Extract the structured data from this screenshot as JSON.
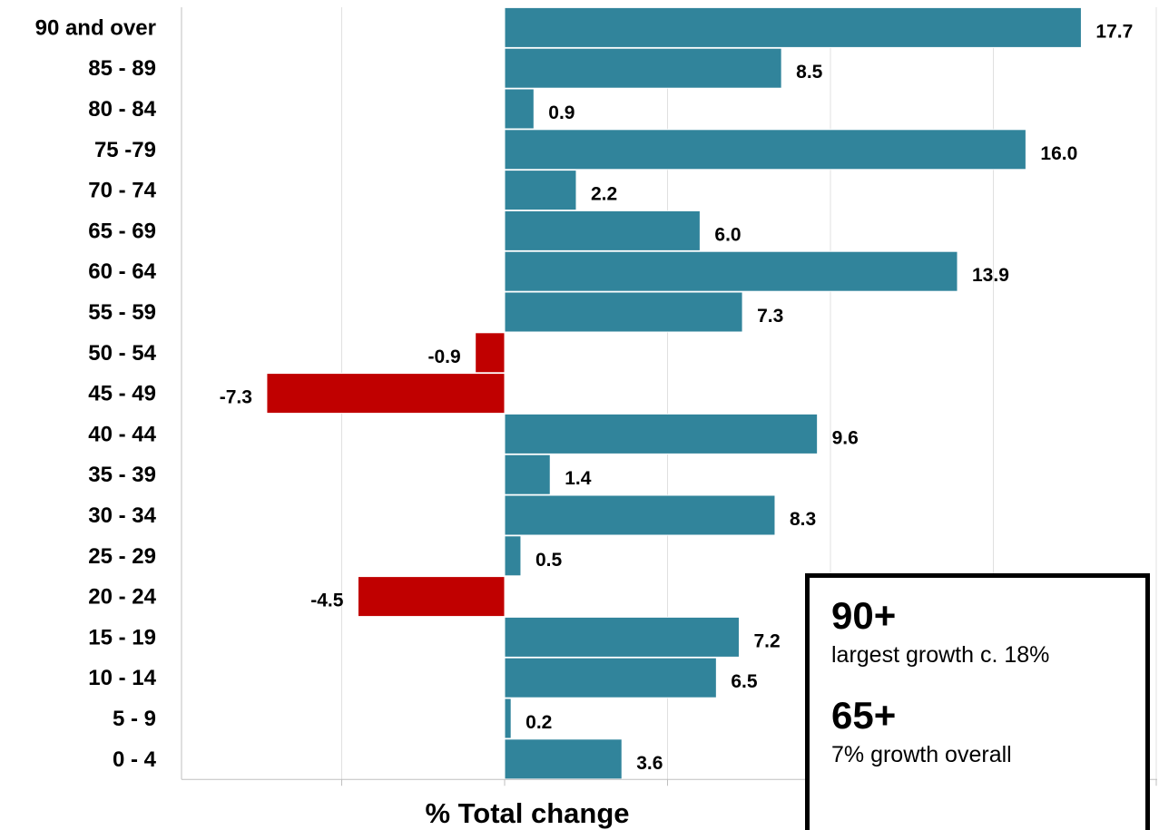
{
  "chart_data": {
    "type": "bar",
    "orientation": "horizontal",
    "categories": [
      "90 and over",
      "85 - 89",
      "80 - 84",
      "75 -79",
      "70 - 74",
      "65 - 69",
      "60 - 64",
      "55 - 59",
      "50 - 54",
      "45 - 49",
      "40 - 44",
      "35 - 39",
      "30 - 34",
      "25 - 29",
      "20 - 24",
      "15 - 19",
      "10 - 14",
      "5 - 9",
      "0 - 4"
    ],
    "values": [
      17.7,
      8.5,
      0.9,
      16.0,
      2.2,
      6.0,
      13.9,
      7.3,
      -0.9,
      -7.3,
      9.6,
      1.4,
      8.3,
      0.5,
      -4.5,
      7.2,
      6.5,
      0.2,
      3.6
    ],
    "value_labels": [
      "17.7",
      "8.5",
      "0.9",
      "16.0",
      "2.2",
      "6.0",
      "13.9",
      "7.3",
      "-0.9",
      "-7.3",
      "9.6",
      "1.4",
      "8.3",
      "0.5",
      "-4.5",
      "7.2",
      "6.5",
      "0.2",
      "3.6"
    ],
    "xlabel": "% Total change",
    "xlim": [
      -10,
      20
    ],
    "grid": "vertical",
    "colors": {
      "positive": "#31849b",
      "negative": "#c00000",
      "gridline": "#e0e0e0",
      "axis": "#bfbfbf"
    }
  },
  "callout": {
    "items": [
      {
        "headline": "90+",
        "text": "largest growth c. 18%"
      },
      {
        "headline": "65+",
        "text": "7% growth overall"
      }
    ]
  }
}
